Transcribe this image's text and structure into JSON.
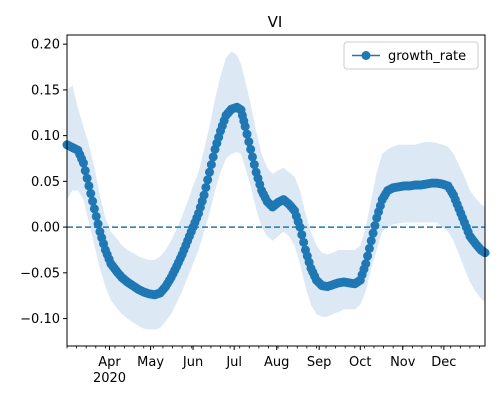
{
  "chart_data": {
    "type": "line",
    "title": "VI",
    "xlabel": "",
    "ylabel": "",
    "legend": {
      "placement": "top-right",
      "entries": [
        "growth_rate"
      ]
    },
    "x_range": [
      "2020-03-01",
      "2020-12-31"
    ],
    "ylim": [
      -0.13,
      0.21
    ],
    "y_ticks": [
      -0.1,
      -0.05,
      0.0,
      0.05,
      0.1,
      0.15,
      0.2
    ],
    "y_tick_labels": [
      "−0.10",
      "−0.05",
      "0.00",
      "0.05",
      "0.10",
      "0.15",
      "0.20"
    ],
    "x_ticks": [
      {
        "date": "2020-04-01",
        "label": "Apr",
        "sublabel": "2020"
      },
      {
        "date": "2020-05-01",
        "label": "May"
      },
      {
        "date": "2020-06-01",
        "label": "Jun"
      },
      {
        "date": "2020-07-01",
        "label": "Jul"
      },
      {
        "date": "2020-08-01",
        "label": "Aug"
      },
      {
        "date": "2020-09-01",
        "label": "Sep"
      },
      {
        "date": "2020-10-01",
        "label": "Oct"
      },
      {
        "date": "2020-11-01",
        "label": "Nov"
      },
      {
        "date": "2020-12-01",
        "label": "Dec"
      }
    ],
    "reference_line": {
      "y": 0.0,
      "style": "dashed"
    },
    "grid": false,
    "series": [
      {
        "name": "growth_rate",
        "color": "#1f77b4",
        "band_color": "#dce9f5",
        "marker": "circle",
        "points": [
          {
            "x": "2020-03-01",
            "y": 0.09,
            "lo": 0.03,
            "hi": 0.15
          },
          {
            "x": "2020-03-05",
            "y": 0.087,
            "lo": 0.04,
            "hi": 0.155
          },
          {
            "x": "2020-03-09",
            "y": 0.084,
            "lo": 0.04,
            "hi": 0.13
          },
          {
            "x": "2020-03-13",
            "y": 0.07,
            "lo": 0.03,
            "hi": 0.11
          },
          {
            "x": "2020-03-17",
            "y": 0.045,
            "lo": 0.005,
            "hi": 0.09
          },
          {
            "x": "2020-03-21",
            "y": 0.02,
            "lo": -0.02,
            "hi": 0.065
          },
          {
            "x": "2020-03-25",
            "y": -0.005,
            "lo": -0.045,
            "hi": 0.035
          },
          {
            "x": "2020-03-29",
            "y": -0.025,
            "lo": -0.065,
            "hi": 0.01
          },
          {
            "x": "2020-04-02",
            "y": -0.04,
            "lo": -0.08,
            "hi": -0.005
          },
          {
            "x": "2020-04-06",
            "y": -0.048,
            "lo": -0.088,
            "hi": -0.012
          },
          {
            "x": "2020-04-10",
            "y": -0.055,
            "lo": -0.095,
            "hi": -0.02
          },
          {
            "x": "2020-04-14",
            "y": -0.06,
            "lo": -0.1,
            "hi": -0.025
          },
          {
            "x": "2020-04-18",
            "y": -0.064,
            "lo": -0.104,
            "hi": -0.028
          },
          {
            "x": "2020-04-22",
            "y": -0.068,
            "lo": -0.108,
            "hi": -0.032
          },
          {
            "x": "2020-04-26",
            "y": -0.071,
            "lo": -0.111,
            "hi": -0.034
          },
          {
            "x": "2020-04-30",
            "y": -0.073,
            "lo": -0.112,
            "hi": -0.036
          },
          {
            "x": "2020-05-04",
            "y": -0.074,
            "lo": -0.112,
            "hi": -0.036
          },
          {
            "x": "2020-05-08",
            "y": -0.072,
            "lo": -0.11,
            "hi": -0.032
          },
          {
            "x": "2020-05-12",
            "y": -0.065,
            "lo": -0.103,
            "hi": -0.025
          },
          {
            "x": "2020-05-16",
            "y": -0.055,
            "lo": -0.095,
            "hi": -0.015
          },
          {
            "x": "2020-05-20",
            "y": -0.043,
            "lo": -0.083,
            "hi": -0.002
          },
          {
            "x": "2020-05-24",
            "y": -0.03,
            "lo": -0.07,
            "hi": 0.012
          },
          {
            "x": "2020-05-28",
            "y": -0.015,
            "lo": -0.055,
            "hi": 0.028
          },
          {
            "x": "2020-06-01",
            "y": 0.0,
            "lo": -0.04,
            "hi": 0.045
          },
          {
            "x": "2020-06-05",
            "y": 0.015,
            "lo": -0.025,
            "hi": 0.06
          },
          {
            "x": "2020-06-09",
            "y": 0.035,
            "lo": -0.005,
            "hi": 0.085
          },
          {
            "x": "2020-06-13",
            "y": 0.06,
            "lo": 0.015,
            "hi": 0.11
          },
          {
            "x": "2020-06-17",
            "y": 0.085,
            "lo": 0.04,
            "hi": 0.14
          },
          {
            "x": "2020-06-21",
            "y": 0.105,
            "lo": 0.06,
            "hi": 0.165
          },
          {
            "x": "2020-06-25",
            "y": 0.122,
            "lo": 0.075,
            "hi": 0.185
          },
          {
            "x": "2020-06-29",
            "y": 0.129,
            "lo": 0.08,
            "hi": 0.192
          },
          {
            "x": "2020-07-03",
            "y": 0.131,
            "lo": 0.082,
            "hi": 0.188
          },
          {
            "x": "2020-07-06",
            "y": 0.128,
            "lo": 0.08,
            "hi": 0.178
          },
          {
            "x": "2020-07-09",
            "y": 0.11,
            "lo": 0.065,
            "hi": 0.16
          },
          {
            "x": "2020-07-13",
            "y": 0.085,
            "lo": 0.045,
            "hi": 0.135
          },
          {
            "x": "2020-07-17",
            "y": 0.06,
            "lo": 0.02,
            "hi": 0.105
          },
          {
            "x": "2020-07-21",
            "y": 0.04,
            "lo": 0.0,
            "hi": 0.08
          },
          {
            "x": "2020-07-25",
            "y": 0.028,
            "lo": -0.01,
            "hi": 0.065
          },
          {
            "x": "2020-07-29",
            "y": 0.022,
            "lo": -0.015,
            "hi": 0.058
          },
          {
            "x": "2020-08-02",
            "y": 0.027,
            "lo": -0.01,
            "hi": 0.062
          },
          {
            "x": "2020-08-06",
            "y": 0.03,
            "lo": -0.005,
            "hi": 0.065
          },
          {
            "x": "2020-08-10",
            "y": 0.025,
            "lo": -0.01,
            "hi": 0.06
          },
          {
            "x": "2020-08-14",
            "y": 0.018,
            "lo": -0.02,
            "hi": 0.055
          },
          {
            "x": "2020-08-18",
            "y": 0.0,
            "lo": -0.04,
            "hi": 0.04
          },
          {
            "x": "2020-08-22",
            "y": -0.025,
            "lo": -0.065,
            "hi": 0.015
          },
          {
            "x": "2020-08-26",
            "y": -0.045,
            "lo": -0.085,
            "hi": -0.005
          },
          {
            "x": "2020-08-30",
            "y": -0.058,
            "lo": -0.095,
            "hi": -0.02
          },
          {
            "x": "2020-09-03",
            "y": -0.064,
            "lo": -0.098,
            "hi": -0.028
          },
          {
            "x": "2020-09-07",
            "y": -0.065,
            "lo": -0.098,
            "hi": -0.03
          },
          {
            "x": "2020-09-11",
            "y": -0.063,
            "lo": -0.095,
            "hi": -0.028
          },
          {
            "x": "2020-09-15",
            "y": -0.061,
            "lo": -0.093,
            "hi": -0.025
          },
          {
            "x": "2020-09-19",
            "y": -0.06,
            "lo": -0.09,
            "hi": -0.025
          },
          {
            "x": "2020-09-23",
            "y": -0.061,
            "lo": -0.09,
            "hi": -0.025
          },
          {
            "x": "2020-09-27",
            "y": -0.062,
            "lo": -0.09,
            "hi": -0.025
          },
          {
            "x": "2020-10-01",
            "y": -0.058,
            "lo": -0.085,
            "hi": -0.02
          },
          {
            "x": "2020-10-05",
            "y": -0.04,
            "lo": -0.07,
            "hi": 0.0
          },
          {
            "x": "2020-10-09",
            "y": -0.015,
            "lo": -0.045,
            "hi": 0.03
          },
          {
            "x": "2020-10-13",
            "y": 0.01,
            "lo": -0.025,
            "hi": 0.06
          },
          {
            "x": "2020-10-17",
            "y": 0.03,
            "lo": -0.005,
            "hi": 0.08
          },
          {
            "x": "2020-10-21",
            "y": 0.04,
            "lo": 0.0,
            "hi": 0.085
          },
          {
            "x": "2020-10-25",
            "y": 0.043,
            "lo": 0.003,
            "hi": 0.088
          },
          {
            "x": "2020-10-29",
            "y": 0.044,
            "lo": 0.004,
            "hi": 0.09
          },
          {
            "x": "2020-11-02",
            "y": 0.045,
            "lo": 0.005,
            "hi": 0.09
          },
          {
            "x": "2020-11-06",
            "y": 0.045,
            "lo": 0.005,
            "hi": 0.09
          },
          {
            "x": "2020-11-10",
            "y": 0.046,
            "lo": 0.005,
            "hi": 0.09
          },
          {
            "x": "2020-11-14",
            "y": 0.046,
            "lo": 0.005,
            "hi": 0.092
          },
          {
            "x": "2020-11-18",
            "y": 0.047,
            "lo": 0.005,
            "hi": 0.093
          },
          {
            "x": "2020-11-22",
            "y": 0.048,
            "lo": 0.005,
            "hi": 0.093
          },
          {
            "x": "2020-11-26",
            "y": 0.048,
            "lo": 0.005,
            "hi": 0.092
          },
          {
            "x": "2020-11-30",
            "y": 0.047,
            "lo": 0.0,
            "hi": 0.09
          },
          {
            "x": "2020-12-04",
            "y": 0.045,
            "lo": -0.005,
            "hi": 0.088
          },
          {
            "x": "2020-12-08",
            "y": 0.035,
            "lo": -0.015,
            "hi": 0.08
          },
          {
            "x": "2020-12-12",
            "y": 0.02,
            "lo": -0.03,
            "hi": 0.068
          },
          {
            "x": "2020-12-16",
            "y": 0.005,
            "lo": -0.045,
            "hi": 0.055
          },
          {
            "x": "2020-12-20",
            "y": -0.01,
            "lo": -0.06,
            "hi": 0.04
          },
          {
            "x": "2020-12-24",
            "y": -0.018,
            "lo": -0.07,
            "hi": 0.032
          },
          {
            "x": "2020-12-28",
            "y": -0.025,
            "lo": -0.078,
            "hi": 0.025
          },
          {
            "x": "2020-12-31",
            "y": -0.028,
            "lo": -0.082,
            "hi": 0.022
          }
        ]
      }
    ]
  }
}
